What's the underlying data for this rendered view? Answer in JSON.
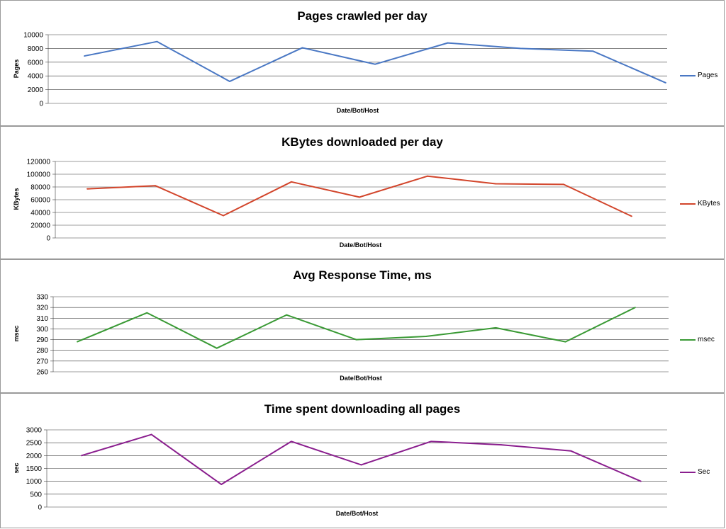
{
  "chart_data": [
    {
      "type": "line",
      "title": "Pages crawled per day",
      "xlabel": "Date/Bot/Host",
      "ylabel": "Pages",
      "ylim": [
        0,
        10000
      ],
      "yticks": [
        0,
        2000,
        4000,
        6000,
        8000,
        10000
      ],
      "grid": true,
      "legend_position": "right",
      "series": [
        {
          "name": "Pages",
          "color": "#4a78c4",
          "values": [
            6900,
            9000,
            3200,
            8100,
            5700,
            8800,
            8000,
            7600,
            3000
          ]
        }
      ]
    },
    {
      "type": "line",
      "title": "KBytes downloaded per day",
      "xlabel": "Date/Bot/Host",
      "ylabel": "KBytes",
      "ylim": [
        0,
        120000
      ],
      "yticks": [
        0,
        20000,
        40000,
        60000,
        80000,
        100000,
        120000
      ],
      "grid": true,
      "legend_position": "right",
      "series": [
        {
          "name": "KBytes",
          "color": "#d2452b",
          "values": [
            77000,
            82000,
            35000,
            88000,
            64000,
            97000,
            85000,
            84000,
            34000
          ]
        }
      ]
    },
    {
      "type": "line",
      "title": "Avg Response Time, ms",
      "xlabel": "Date/Bot/Host",
      "ylabel": "msec",
      "ylim": [
        260,
        330
      ],
      "yticks": [
        260,
        270,
        280,
        290,
        300,
        310,
        320,
        330
      ],
      "grid": true,
      "legend_position": "right",
      "series": [
        {
          "name": "msec",
          "color": "#3a9a35",
          "values": [
            288,
            315,
            282,
            313,
            290,
            293,
            301,
            288,
            320
          ]
        }
      ]
    },
    {
      "type": "line",
      "title": "Time spent downloading all pages",
      "xlabel": "Date/Bot/Host",
      "ylabel": "sec",
      "ylim": [
        0,
        3000
      ],
      "yticks": [
        0,
        500,
        1000,
        1500,
        2000,
        2500,
        3000
      ],
      "grid": true,
      "legend_position": "right",
      "series": [
        {
          "name": "Sec",
          "color": "#8a1e8e",
          "values": [
            2000,
            2820,
            880,
            2550,
            1640,
            2550,
            2420,
            2180,
            1000
          ]
        }
      ]
    }
  ]
}
